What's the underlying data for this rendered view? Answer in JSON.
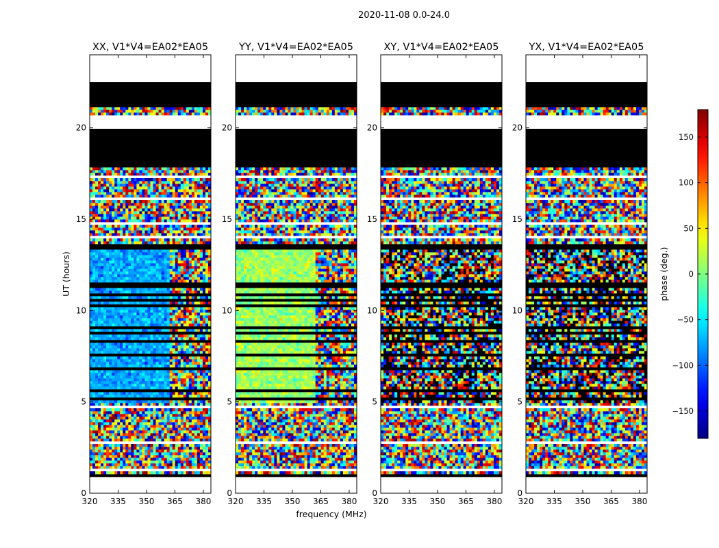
{
  "figure": {
    "suptitle": "2020-11-08 0.0-24.0",
    "xlabel": "frequency (MHz)",
    "ylabel": "UT (hours)"
  },
  "chart_data": {
    "type": "heatmap",
    "title": "2020-11-08 0.0-24.0",
    "xlabel": "frequency (MHz)",
    "ylabel": "UT (hours)",
    "xlim": [
      320,
      384
    ],
    "ylim": [
      0,
      24
    ],
    "xticks": [
      320,
      335,
      350,
      365,
      380
    ],
    "yticks": [
      0,
      5,
      10,
      15,
      20
    ],
    "panels": [
      {
        "title": "XX, V1*V4=EA02*EA05",
        "pol": "XX"
      },
      {
        "title": "YY, V1*V4=EA02*EA05",
        "pol": "YY"
      },
      {
        "title": "XY, V1*V4=EA02*EA05",
        "pol": "XY"
      },
      {
        "title": "YX, V1*V4=EA02*EA05",
        "pol": "YX"
      }
    ],
    "colorbar": {
      "label": "phase (deg.)",
      "range": [
        -180,
        180
      ],
      "ticks": [
        -150,
        -100,
        -50,
        0,
        50,
        100,
        150
      ],
      "tick_labels": [
        "−150",
        "−100",
        "−50",
        "0",
        "50",
        "100",
        "150"
      ],
      "colormap": "jet"
    },
    "time_segments": [
      {
        "t0": 0.0,
        "t1": 0.85,
        "state": "blank"
      },
      {
        "t0": 0.85,
        "t1": 1.0,
        "state": "flagged"
      },
      {
        "t0": 1.0,
        "t1": 4.95,
        "state": "noise"
      },
      {
        "t0": 4.95,
        "t1": 13.3,
        "state": "signal"
      },
      {
        "t0": 13.3,
        "t1": 13.65,
        "state": "flagged"
      },
      {
        "t0": 13.65,
        "t1": 17.8,
        "state": "noise"
      },
      {
        "t0": 17.8,
        "t1": 20.0,
        "state": "flagged"
      },
      {
        "t0": 20.0,
        "t1": 20.7,
        "state": "blank"
      },
      {
        "t0": 20.7,
        "t1": 21.2,
        "state": "noise"
      },
      {
        "t0": 21.2,
        "t1": 22.5,
        "state": "flagged"
      },
      {
        "t0": 22.5,
        "t1": 24.0,
        "state": "blank"
      }
    ],
    "blank_times": [
      1.25,
      2.7,
      2.8,
      3.3,
      3.6,
      4.7,
      4.75,
      14.0,
      14.8,
      16.1,
      16.2,
      17.3
    ],
    "flag_times": [
      5.2,
      5.6,
      6.8,
      7.5,
      7.55,
      8.3,
      8.55,
      8.8,
      9.1,
      9.3,
      9.6,
      10.3,
      10.6,
      10.9,
      11.3,
      11.5,
      12.0,
      12.9,
      18.4,
      19.0,
      19.6,
      21.7
    ],
    "signal_phase_deg": {
      "XX": -75,
      "YY": 10
    },
    "signal_line_freq_mhz": [
      362,
      380
    ]
  }
}
